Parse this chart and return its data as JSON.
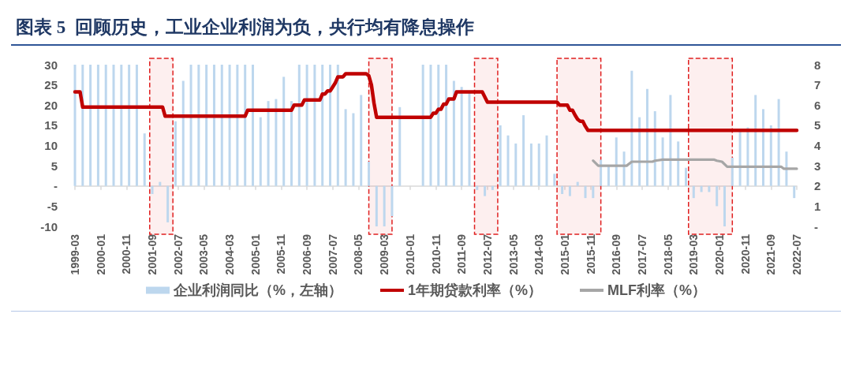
{
  "chart_data": {
    "type": "bar",
    "title": "图表 5  回顾历史，工业企业利润为负，央行均有降息操作",
    "xlim": [
      "1999-03",
      "2022-07"
    ],
    "xticks": [
      "1999-03",
      "2000-01",
      "2000-11",
      "2001-09",
      "2002-07",
      "2003-05",
      "2004-03",
      "2005-01",
      "2005-11",
      "2006-09",
      "2007-07",
      "2008-05",
      "2009-03",
      "2010-01",
      "2010-11",
      "2011-09",
      "2012-07",
      "2013-05",
      "2014-03",
      "2015-01",
      "2015-11",
      "2016-09",
      "2017-07",
      "2018-05",
      "2019-03",
      "2020-01",
      "2020-11",
      "2021-09",
      "2022-07"
    ],
    "ylim": [
      -10,
      30
    ],
    "yticks": [
      -10,
      -5,
      {
        "value": 0,
        "label": "-"
      },
      5,
      10,
      15,
      20,
      25,
      30
    ],
    "y2lim": [
      0,
      8
    ],
    "y2ticks": [
      {
        "value": 0,
        "label": "-"
      },
      1,
      2,
      3,
      4,
      5,
      6,
      7,
      8
    ],
    "series": [
      {
        "name": "企业利润同比（%，左轴）",
        "color": "#bdd7ee",
        "x": [
          "1999-03",
          "1999-06",
          "1999-09",
          "1999-12",
          "2000-03",
          "2000-06",
          "2000-09",
          "2000-12",
          "2001-03",
          "2001-06",
          "2001-09",
          "2001-12",
          "2002-03",
          "2002-06",
          "2002-09",
          "2002-12",
          "2003-03",
          "2003-06",
          "2003-09",
          "2003-12",
          "2004-03",
          "2004-06",
          "2004-09",
          "2004-12",
          "2005-03",
          "2005-06",
          "2005-09",
          "2005-12",
          "2006-03",
          "2006-06",
          "2006-09",
          "2006-12",
          "2007-03",
          "2007-06",
          "2007-09",
          "2007-12",
          "2008-03",
          "2008-06",
          "2008-09",
          "2008-12",
          "2009-03",
          "2009-06",
          "2009-09",
          "2010-06",
          "2010-09",
          "2010-12",
          "2011-03",
          "2011-06",
          "2011-09",
          "2011-12",
          "2012-03",
          "2012-06",
          "2012-09",
          "2012-12",
          "2013-03",
          "2013-06",
          "2013-09",
          "2013-12",
          "2014-03",
          "2014-06",
          "2014-09",
          "2014-12",
          "2015-03",
          "2015-06",
          "2015-09",
          "2015-12",
          "2016-03",
          "2016-06",
          "2016-09",
          "2016-12",
          "2017-03",
          "2017-06",
          "2017-09",
          "2017-12",
          "2018-03",
          "2018-06",
          "2018-09",
          "2018-12",
          "2019-03",
          "2019-06",
          "2019-09",
          "2019-12",
          "2020-03",
          "2020-06",
          "2020-09",
          "2020-12",
          "2021-03",
          "2021-06",
          "2021-09",
          "2021-12",
          "2022-03",
          "2022-06"
        ],
        "values": [
          30,
          30,
          30,
          30,
          30,
          30,
          30,
          30,
          30,
          13,
          -2,
          1,
          -9,
          16,
          26,
          30,
          30,
          30,
          30,
          30,
          30,
          30,
          30,
          30,
          17,
          21,
          21.5,
          27,
          21,
          30,
          30,
          30,
          30,
          30,
          30,
          19,
          18,
          22.5,
          6,
          -10,
          -10,
          -7.5,
          19.5,
          30,
          30,
          30,
          30,
          26,
          24.5,
          23,
          -1,
          -2.5,
          -1,
          15,
          12.5,
          10.5,
          17.5,
          10.5,
          10.5,
          12.5,
          3,
          -2,
          -2.5,
          1,
          -3,
          -3,
          6.5,
          5,
          12,
          8.5,
          28.5,
          17,
          24,
          18.5,
          12,
          22.5,
          11,
          4.5,
          -3,
          -1.5,
          -1.5,
          -5,
          -10,
          7,
          13.5,
          14.5,
          22.5,
          19,
          15,
          21.5,
          8.5,
          -3
        ]
      },
      {
        "name": "1年期贷款利率（%）",
        "type": "line",
        "axis": "y2",
        "color": "#c00000",
        "x": [
          "1999-03",
          "1999-05",
          "1999-06",
          "2002-01",
          "2002-02",
          "2004-09",
          "2004-10",
          "2006-03",
          "2006-04",
          "2006-07",
          "2006-08",
          "2007-02",
          "2007-03",
          "2007-04",
          "2007-05",
          "2007-06",
          "2007-07",
          "2007-08",
          "2007-09",
          "2007-11",
          "2007-12",
          "2008-08",
          "2008-09",
          "2008-10",
          "2008-11",
          "2008-12",
          "2010-09",
          "2010-10",
          "2010-11",
          "2010-12",
          "2011-01",
          "2011-02",
          "2011-03",
          "2011-04",
          "2011-06",
          "2011-07",
          "2012-05",
          "2012-06",
          "2012-07",
          "2014-10",
          "2014-11",
          "2015-02",
          "2015-03",
          "2015-04",
          "2015-05",
          "2015-06",
          "2015-07",
          "2015-08",
          "2015-09",
          "2015-10",
          "2022-07"
        ],
        "values": [
          6.65,
          6.65,
          5.9,
          5.9,
          5.45,
          5.45,
          5.75,
          5.75,
          6.0,
          6.0,
          6.25,
          6.25,
          6.55,
          6.55,
          6.7,
          6.7,
          6.9,
          7.1,
          7.4,
          7.4,
          7.55,
          7.55,
          7.45,
          7.0,
          6.1,
          5.4,
          5.4,
          5.6,
          5.6,
          5.8,
          5.8,
          6.05,
          6.05,
          6.3,
          6.3,
          6.65,
          6.65,
          6.4,
          6.15,
          6.15,
          6.0,
          6.0,
          5.75,
          5.75,
          5.5,
          5.3,
          5.2,
          5.2,
          4.95,
          4.75,
          4.75
        ]
      },
      {
        "name": "MLF利率（%）",
        "type": "line",
        "axis": "y2",
        "color": "#a6a6a6",
        "x": [
          "2015-12",
          "2016-02",
          "2017-01",
          "2017-03",
          "2017-11",
          "2017-12",
          "2018-03",
          "2019-11",
          "2019-12",
          "2020-02",
          "2020-04",
          "2022-01",
          "2022-02",
          "2022-07"
        ],
        "values": [
          3.25,
          3.0,
          3.0,
          3.2,
          3.2,
          3.25,
          3.3,
          3.3,
          3.25,
          3.2,
          2.95,
          2.95,
          2.85,
          2.85
        ]
      }
    ],
    "bands": [
      {
        "axis": "x",
        "from": "2001-08",
        "to": "2002-05",
        "color": "#e02020"
      },
      {
        "axis": "x",
        "from": "2008-09",
        "to": "2009-06",
        "color": "#e02020"
      },
      {
        "axis": "x",
        "from": "2012-02",
        "to": "2012-11",
        "color": "#e02020"
      },
      {
        "axis": "x",
        "from": "2014-10",
        "to": "2016-03",
        "color": "#e02020"
      },
      {
        "axis": "x",
        "from": "2019-01",
        "to": "2020-06",
        "color": "#e02020"
      }
    ],
    "legend": "bottom",
    "line_style": "solid"
  }
}
